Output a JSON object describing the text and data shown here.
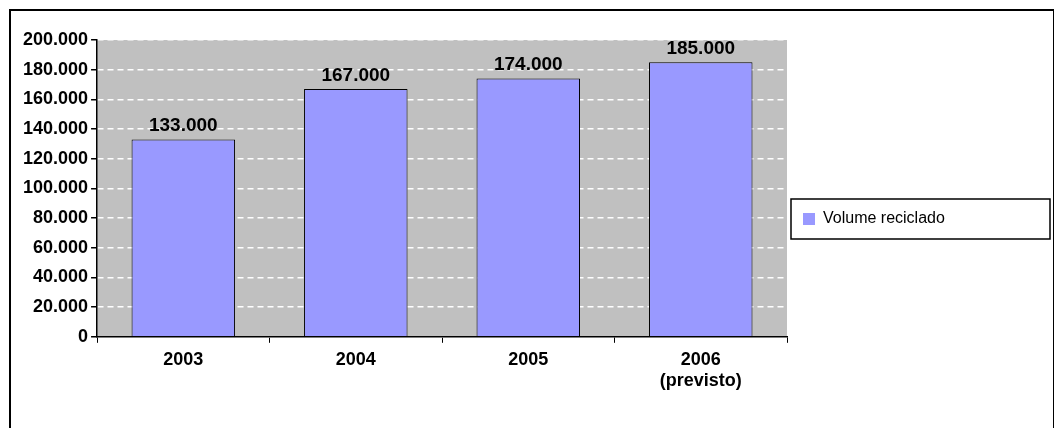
{
  "chart_data": {
    "type": "bar",
    "categories": [
      "2003",
      "2004",
      "2005",
      "2006\n(previsto)"
    ],
    "series": [
      {
        "name": "Volume reciclado",
        "color": "#9999ff",
        "values": [
          133000,
          167000,
          174000,
          185000
        ],
        "value_labels": [
          "133.000",
          "167.000",
          "174.000",
          "185.000"
        ]
      }
    ],
    "ylim": [
      0,
      200000
    ],
    "yticks": [
      {
        "value": 0,
        "label": "0"
      },
      {
        "value": 20000,
        "label": "20.000"
      },
      {
        "value": 40000,
        "label": "40.000"
      },
      {
        "value": 60000,
        "label": "60.000"
      },
      {
        "value": 80000,
        "label": "80.000"
      },
      {
        "value": 100000,
        "label": "100.000"
      },
      {
        "value": 120000,
        "label": "120.000"
      },
      {
        "value": 140000,
        "label": "140.000"
      },
      {
        "value": 160000,
        "label": "160.000"
      },
      {
        "value": 180000,
        "label": "180.000"
      },
      {
        "value": 200000,
        "label": "200.000"
      }
    ],
    "grid": "y",
    "legend": "right"
  }
}
